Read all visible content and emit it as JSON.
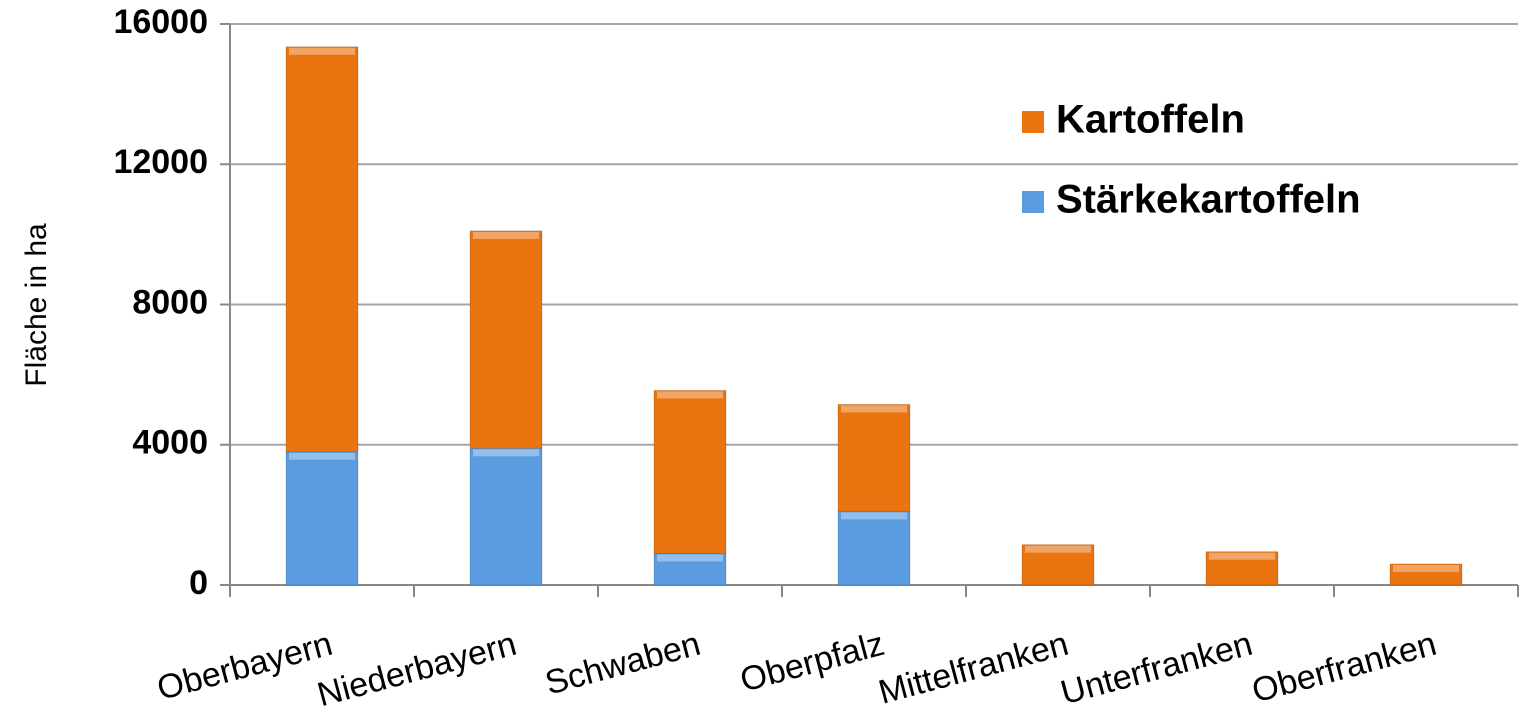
{
  "chart_data": {
    "type": "stacked_bar",
    "y_label": "Fläche in ha",
    "categories": [
      "Oberbayern",
      "Niederbayern",
      "Schwaben",
      "Oberpfalz",
      "Mittelfranken",
      "Unterfranken",
      "Oberfranken"
    ],
    "series": [
      {
        "name": "Stärkekartoffeln",
        "color": "#5b9be0",
        "values": [
          3800,
          3900,
          900,
          2100,
          0,
          0,
          0
        ]
      },
      {
        "name": "Kartoffeln",
        "color": "#ea7410",
        "values": [
          11550,
          6200,
          4650,
          3050,
          1150,
          950,
          600
        ]
      }
    ],
    "ylim": [
      0,
      16000
    ],
    "yticks": [
      0,
      4000,
      8000,
      12000,
      16000
    ],
    "grid": true,
    "legend": "upper right"
  }
}
